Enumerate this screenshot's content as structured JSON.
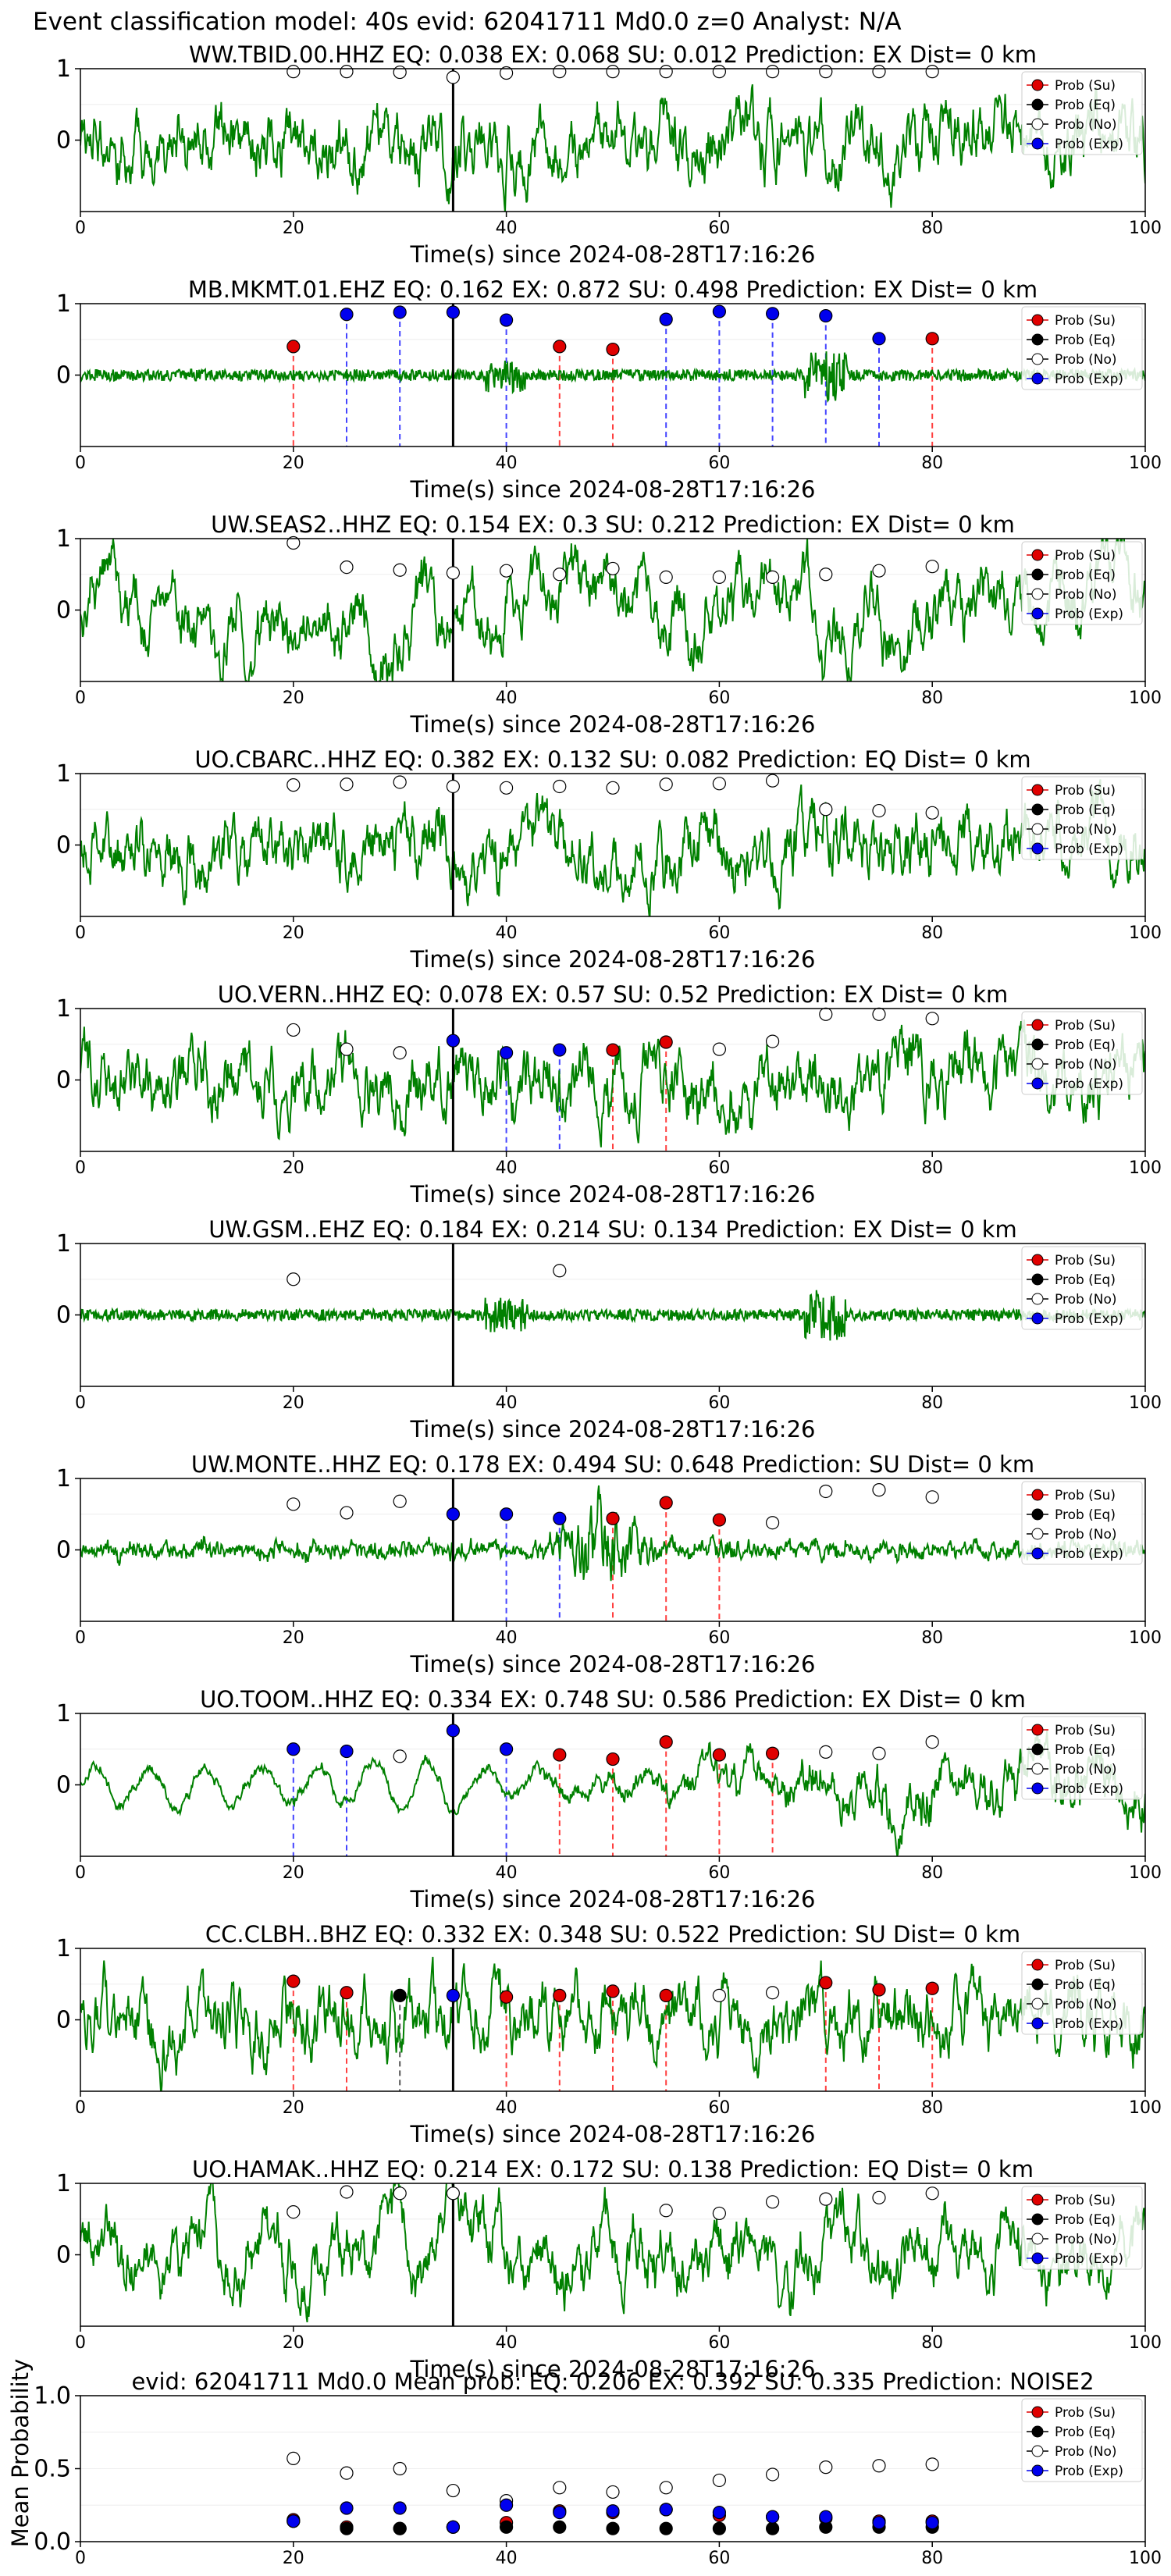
{
  "figure_title": "Event classification model: 40s evid: 62041711 Md0.0 z=0 Analyst: N/A",
  "legend_labels": [
    "Prob (Su)",
    "Prob (Eq)",
    "Prob (No)",
    "Prob (Exp)"
  ],
  "colors": {
    "su": "#e00000",
    "eq": "#000000",
    "no": "#ffffff",
    "exp": "#0000ee",
    "waveform": "#008000",
    "su_line": "#ff4040",
    "exp_line": "#4444ff",
    "eq_line": "#555555"
  },
  "chart_data": [
    {
      "type": "line+scatter",
      "title": "WW.TBID.00.HHZ   EQ: 0.038  EX: 0.068  SU: 0.012   Prediction: EX    Dist= 0 km",
      "xlabel": "Time(s) since 2024-08-28T17:16:26",
      "xlim": [
        0,
        100
      ],
      "ylim": [
        -1,
        1
      ],
      "xticks": [
        0,
        20,
        40,
        60,
        80,
        100
      ],
      "yticks": [
        0,
        1
      ],
      "pick_time": 35,
      "waveform_style": "noisy",
      "windows": [
        20,
        25,
        30,
        35,
        40,
        45,
        50,
        55,
        60,
        65,
        70,
        75,
        80
      ],
      "points": [
        {
          "x": 20,
          "y": 0.96,
          "cls": "no"
        },
        {
          "x": 25,
          "y": 0.96,
          "cls": "no"
        },
        {
          "x": 30,
          "y": 0.95,
          "cls": "no"
        },
        {
          "x": 35,
          "y": 0.88,
          "cls": "no"
        },
        {
          "x": 40,
          "y": 0.94,
          "cls": "no"
        },
        {
          "x": 45,
          "y": 0.96,
          "cls": "no"
        },
        {
          "x": 50,
          "y": 0.96,
          "cls": "no"
        },
        {
          "x": 55,
          "y": 0.96,
          "cls": "no"
        },
        {
          "x": 60,
          "y": 0.96,
          "cls": "no"
        },
        {
          "x": 65,
          "y": 0.96,
          "cls": "no"
        },
        {
          "x": 70,
          "y": 0.96,
          "cls": "no"
        },
        {
          "x": 75,
          "y": 0.96,
          "cls": "no"
        },
        {
          "x": 80,
          "y": 0.96,
          "cls": "no"
        }
      ]
    },
    {
      "type": "line+scatter",
      "title": "MB.MKMT.01.EHZ   EQ: 0.162  EX: 0.872  SU: 0.498   Prediction: EX    Dist= 0 km",
      "xlabel": "Time(s) since 2024-08-28T17:16:26",
      "xlim": [
        0,
        100
      ],
      "ylim": [
        -1,
        1
      ],
      "xticks": [
        0,
        20,
        40,
        60,
        80,
        100
      ],
      "yticks": [
        0,
        1
      ],
      "pick_time": 35,
      "waveform_style": "quiet",
      "points": [
        {
          "x": 20,
          "y": 0.4,
          "cls": "su"
        },
        {
          "x": 25,
          "y": 0.85,
          "cls": "exp"
        },
        {
          "x": 30,
          "y": 0.88,
          "cls": "exp"
        },
        {
          "x": 35,
          "y": 0.88,
          "cls": "exp"
        },
        {
          "x": 40,
          "y": 0.77,
          "cls": "exp"
        },
        {
          "x": 45,
          "y": 0.4,
          "cls": "su"
        },
        {
          "x": 50,
          "y": 0.36,
          "cls": "su"
        },
        {
          "x": 55,
          "y": 0.78,
          "cls": "exp"
        },
        {
          "x": 60,
          "y": 0.89,
          "cls": "exp"
        },
        {
          "x": 65,
          "y": 0.86,
          "cls": "exp"
        },
        {
          "x": 70,
          "y": 0.83,
          "cls": "exp"
        },
        {
          "x": 75,
          "y": 0.51,
          "cls": "exp"
        },
        {
          "x": 80,
          "y": 0.51,
          "cls": "su"
        }
      ]
    },
    {
      "type": "line+scatter",
      "title": "UW.SEAS2..HHZ   EQ: 0.154  EX: 0.3  SU: 0.212   Prediction: EX    Dist= 0 km",
      "xlabel": "Time(s) since 2024-08-28T17:16:26",
      "xlim": [
        0,
        100
      ],
      "ylim": [
        -1,
        1
      ],
      "xticks": [
        0,
        20,
        40,
        60,
        80,
        100
      ],
      "yticks": [
        0,
        1
      ],
      "pick_time": 35,
      "waveform_style": "smooth",
      "points": [
        {
          "x": 20,
          "y": 0.94,
          "cls": "no"
        },
        {
          "x": 25,
          "y": 0.6,
          "cls": "no"
        },
        {
          "x": 30,
          "y": 0.56,
          "cls": "no"
        },
        {
          "x": 35,
          "y": 0.52,
          "cls": "no"
        },
        {
          "x": 40,
          "y": 0.55,
          "cls": "no"
        },
        {
          "x": 45,
          "y": 0.5,
          "cls": "no"
        },
        {
          "x": 50,
          "y": 0.58,
          "cls": "no"
        },
        {
          "x": 55,
          "y": 0.46,
          "cls": "no"
        },
        {
          "x": 60,
          "y": 0.46,
          "cls": "no"
        },
        {
          "x": 65,
          "y": 0.46,
          "cls": "no"
        },
        {
          "x": 70,
          "y": 0.5,
          "cls": "no"
        },
        {
          "x": 75,
          "y": 0.55,
          "cls": "no"
        },
        {
          "x": 80,
          "y": 0.61,
          "cls": "no"
        }
      ]
    },
    {
      "type": "line+scatter",
      "title": "UO.CBARC..HHZ   EQ: 0.382  EX: 0.132  SU: 0.082   Prediction: EQ    Dist= 0 km",
      "xlabel": "Time(s) since 2024-08-28T17:16:26",
      "xlim": [
        0,
        100
      ],
      "ylim": [
        -1,
        1
      ],
      "xticks": [
        0,
        20,
        40,
        60,
        80,
        100
      ],
      "yticks": [
        0,
        1
      ],
      "pick_time": 35,
      "waveform_style": "noisy",
      "points": [
        {
          "x": 20,
          "y": 0.84,
          "cls": "no"
        },
        {
          "x": 25,
          "y": 0.85,
          "cls": "no"
        },
        {
          "x": 30,
          "y": 0.88,
          "cls": "no"
        },
        {
          "x": 35,
          "y": 0.82,
          "cls": "no"
        },
        {
          "x": 40,
          "y": 0.8,
          "cls": "no"
        },
        {
          "x": 45,
          "y": 0.82,
          "cls": "no"
        },
        {
          "x": 50,
          "y": 0.8,
          "cls": "no"
        },
        {
          "x": 55,
          "y": 0.85,
          "cls": "no"
        },
        {
          "x": 60,
          "y": 0.86,
          "cls": "no"
        },
        {
          "x": 65,
          "y": 0.9,
          "cls": "no"
        },
        {
          "x": 70,
          "y": 0.5,
          "cls": "no"
        },
        {
          "x": 75,
          "y": 0.48,
          "cls": "no"
        },
        {
          "x": 80,
          "y": 0.45,
          "cls": "no"
        }
      ]
    },
    {
      "type": "line+scatter",
      "title": "UO.VERN..HHZ   EQ: 0.078  EX: 0.57  SU: 0.52   Prediction: EX    Dist= 0 km",
      "xlabel": "Time(s) since 2024-08-28T17:16:26",
      "xlim": [
        0,
        100
      ],
      "ylim": [
        -1,
        1
      ],
      "xticks": [
        0,
        20,
        40,
        60,
        80,
        100
      ],
      "yticks": [
        0,
        1
      ],
      "pick_time": 35,
      "waveform_style": "noisy",
      "points": [
        {
          "x": 20,
          "y": 0.7,
          "cls": "no"
        },
        {
          "x": 25,
          "y": 0.43,
          "cls": "no"
        },
        {
          "x": 30,
          "y": 0.38,
          "cls": "no"
        },
        {
          "x": 35,
          "y": 0.55,
          "cls": "exp"
        },
        {
          "x": 40,
          "y": 0.38,
          "cls": "exp"
        },
        {
          "x": 45,
          "y": 0.42,
          "cls": "exp"
        },
        {
          "x": 50,
          "y": 0.42,
          "cls": "su"
        },
        {
          "x": 55,
          "y": 0.53,
          "cls": "su"
        },
        {
          "x": 60,
          "y": 0.43,
          "cls": "no"
        },
        {
          "x": 65,
          "y": 0.54,
          "cls": "no"
        },
        {
          "x": 70,
          "y": 0.92,
          "cls": "no"
        },
        {
          "x": 75,
          "y": 0.92,
          "cls": "no"
        },
        {
          "x": 80,
          "y": 0.86,
          "cls": "no"
        }
      ]
    },
    {
      "type": "line+scatter",
      "title": "UW.GSM..EHZ   EQ: 0.184  EX: 0.214  SU: 0.134   Prediction: EX    Dist= 0 km",
      "xlabel": "Time(s) since 2024-08-28T17:16:26",
      "xlim": [
        0,
        100
      ],
      "ylim": [
        -1,
        1
      ],
      "xticks": [
        0,
        20,
        40,
        60,
        80,
        100
      ],
      "yticks": [
        0,
        1
      ],
      "pick_time": 35,
      "waveform_style": "quiet",
      "points": [
        {
          "x": 20,
          "y": 0.5,
          "cls": "no"
        },
        {
          "x": 45,
          "y": 0.62,
          "cls": "no"
        }
      ]
    },
    {
      "type": "line+scatter",
      "title": "UW.MONTE..HHZ   EQ: 0.178  EX: 0.494  SU: 0.648   Prediction: SU    Dist= 0 km",
      "xlabel": "Time(s) since 2024-08-28T17:16:26",
      "xlim": [
        0,
        100
      ],
      "ylim": [
        -1,
        1
      ],
      "xticks": [
        0,
        20,
        40,
        60,
        80,
        100
      ],
      "yticks": [
        0,
        1
      ],
      "pick_time": 35,
      "waveform_style": "burst",
      "points": [
        {
          "x": 20,
          "y": 0.64,
          "cls": "no"
        },
        {
          "x": 25,
          "y": 0.52,
          "cls": "no"
        },
        {
          "x": 30,
          "y": 0.68,
          "cls": "no"
        },
        {
          "x": 35,
          "y": 0.5,
          "cls": "exp"
        },
        {
          "x": 40,
          "y": 0.5,
          "cls": "exp"
        },
        {
          "x": 45,
          "y": 0.44,
          "cls": "exp"
        },
        {
          "x": 50,
          "y": 0.44,
          "cls": "su"
        },
        {
          "x": 55,
          "y": 0.66,
          "cls": "su"
        },
        {
          "x": 60,
          "y": 0.42,
          "cls": "su"
        },
        {
          "x": 65,
          "y": 0.38,
          "cls": "no"
        },
        {
          "x": 70,
          "y": 0.82,
          "cls": "no"
        },
        {
          "x": 75,
          "y": 0.84,
          "cls": "no"
        },
        {
          "x": 80,
          "y": 0.74,
          "cls": "no"
        }
      ]
    },
    {
      "type": "line+scatter",
      "title": "UO.TOOM..HHZ   EQ: 0.334  EX: 0.748  SU: 0.586   Prediction: EX    Dist= 0 km",
      "xlabel": "Time(s) since 2024-08-28T17:16:26",
      "xlim": [
        0,
        100
      ],
      "ylim": [
        -1,
        1
      ],
      "xticks": [
        0,
        20,
        40,
        60,
        80,
        100
      ],
      "yticks": [
        0,
        1
      ],
      "pick_time": 35,
      "waveform_style": "grow",
      "points": [
        {
          "x": 20,
          "y": 0.5,
          "cls": "exp"
        },
        {
          "x": 25,
          "y": 0.47,
          "cls": "exp"
        },
        {
          "x": 30,
          "y": 0.4,
          "cls": "no"
        },
        {
          "x": 35,
          "y": 0.76,
          "cls": "exp"
        },
        {
          "x": 40,
          "y": 0.5,
          "cls": "exp"
        },
        {
          "x": 45,
          "y": 0.42,
          "cls": "su"
        },
        {
          "x": 50,
          "y": 0.36,
          "cls": "su"
        },
        {
          "x": 55,
          "y": 0.6,
          "cls": "su"
        },
        {
          "x": 60,
          "y": 0.42,
          "cls": "su"
        },
        {
          "x": 65,
          "y": 0.44,
          "cls": "su"
        },
        {
          "x": 70,
          "y": 0.46,
          "cls": "no"
        },
        {
          "x": 75,
          "y": 0.44,
          "cls": "no"
        },
        {
          "x": 80,
          "y": 0.6,
          "cls": "no"
        }
      ]
    },
    {
      "type": "line+scatter",
      "title": "CC.CLBH..BHZ   EQ: 0.332  EX: 0.348  SU: 0.522   Prediction: SU    Dist= 0 km",
      "xlabel": "Time(s) since 2024-08-28T17:16:26",
      "xlim": [
        0,
        100
      ],
      "ylim": [
        -1,
        1
      ],
      "xticks": [
        0,
        20,
        40,
        60,
        80,
        100
      ],
      "yticks": [
        0,
        1
      ],
      "pick_time": 35,
      "waveform_style": "noisy",
      "points": [
        {
          "x": 20,
          "y": 0.54,
          "cls": "su"
        },
        {
          "x": 25,
          "y": 0.38,
          "cls": "su"
        },
        {
          "x": 30,
          "y": 0.34,
          "cls": "eq"
        },
        {
          "x": 35,
          "y": 0.34,
          "cls": "exp"
        },
        {
          "x": 40,
          "y": 0.32,
          "cls": "su"
        },
        {
          "x": 45,
          "y": 0.34,
          "cls": "su"
        },
        {
          "x": 50,
          "y": 0.4,
          "cls": "su"
        },
        {
          "x": 55,
          "y": 0.34,
          "cls": "su"
        },
        {
          "x": 60,
          "y": 0.34,
          "cls": "no"
        },
        {
          "x": 65,
          "y": 0.38,
          "cls": "no"
        },
        {
          "x": 70,
          "y": 0.52,
          "cls": "su"
        },
        {
          "x": 75,
          "y": 0.42,
          "cls": "su"
        },
        {
          "x": 80,
          "y": 0.44,
          "cls": "su"
        }
      ]
    },
    {
      "type": "line+scatter",
      "title": "UO.HAMAK..HHZ   EQ: 0.214  EX: 0.172  SU: 0.138   Prediction: EQ    Dist= 0 km",
      "xlabel": "Time(s) since 2024-08-28T17:16:26",
      "xlim": [
        0,
        100
      ],
      "ylim": [
        -1,
        1
      ],
      "xticks": [
        0,
        20,
        40,
        60,
        80,
        100
      ],
      "yticks": [
        0,
        1
      ],
      "pick_time": 35,
      "waveform_style": "smooth",
      "points": [
        {
          "x": 20,
          "y": 0.6,
          "cls": "no"
        },
        {
          "x": 25,
          "y": 0.88,
          "cls": "no"
        },
        {
          "x": 30,
          "y": 0.86,
          "cls": "no"
        },
        {
          "x": 35,
          "y": 0.86,
          "cls": "no"
        },
        {
          "x": 55,
          "y": 0.62,
          "cls": "no"
        },
        {
          "x": 60,
          "y": 0.58,
          "cls": "no"
        },
        {
          "x": 65,
          "y": 0.74,
          "cls": "no"
        },
        {
          "x": 70,
          "y": 0.78,
          "cls": "no"
        },
        {
          "x": 75,
          "y": 0.8,
          "cls": "no"
        },
        {
          "x": 80,
          "y": 0.86,
          "cls": "no"
        }
      ]
    },
    {
      "type": "scatter",
      "title": "evid: 62041711  Md0.0   Mean prob:   EQ: 0.206  EX: 0.392  SU: 0.335   Prediction: NOISE2",
      "ylabel": "Mean Probability",
      "xlim": [
        0,
        100
      ],
      "ylim": [
        0,
        1
      ],
      "xticks": [
        0,
        20,
        40,
        60,
        80,
        100
      ],
      "yticks": [
        0.0,
        0.5,
        1.0
      ],
      "ytick_labels": [
        "0.0",
        "0.5",
        "1.0"
      ],
      "x": [
        20,
        25,
        30,
        35,
        40,
        45,
        50,
        55,
        60,
        65,
        70,
        75,
        80
      ],
      "series": [
        {
          "name": "Prob (Su)",
          "cls": "su",
          "values": [
            0.15,
            0.1,
            0.09,
            0.1,
            0.13,
            0.21,
            0.2,
            0.22,
            0.18,
            0.17,
            0.16,
            0.14,
            0.14
          ]
        },
        {
          "name": "Prob (Eq)",
          "cls": "eq",
          "values": [
            0.14,
            0.09,
            0.09,
            0.1,
            0.1,
            0.1,
            0.09,
            0.09,
            0.09,
            0.09,
            0.1,
            0.1,
            0.1
          ]
        },
        {
          "name": "Prob (No)",
          "cls": "no",
          "values": [
            0.57,
            0.47,
            0.5,
            0.35,
            0.28,
            0.37,
            0.34,
            0.37,
            0.42,
            0.46,
            0.51,
            0.52,
            0.53
          ]
        },
        {
          "name": "Prob (Exp)",
          "cls": "exp",
          "values": [
            0.14,
            0.23,
            0.23,
            0.1,
            0.25,
            0.2,
            0.21,
            0.22,
            0.2,
            0.17,
            0.17,
            0.13,
            0.13
          ]
        }
      ]
    }
  ]
}
